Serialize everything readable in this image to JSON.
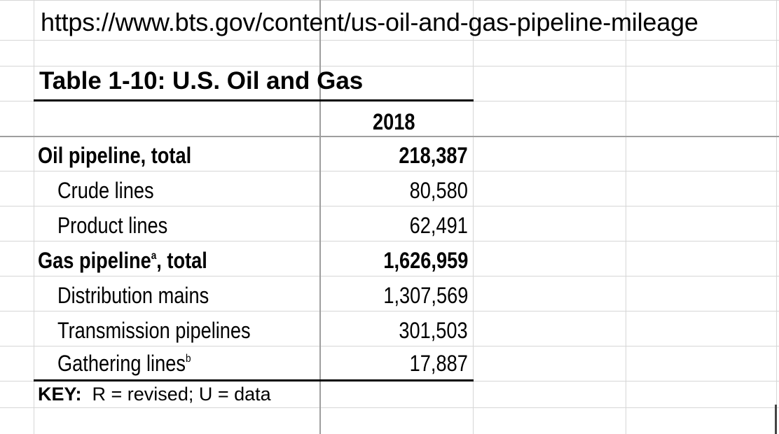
{
  "source_url": "https://www.bts.gov/content/us-oil-and-gas-pipeline-mileage",
  "table": {
    "title": "Table 1-10:  U.S. Oil and Gas",
    "year_header": "2018",
    "rows": [
      {
        "label": "Oil pipeline, total",
        "sup": "",
        "suffix": "",
        "value": "218,387"
      },
      {
        "label": "Crude lines",
        "sup": "",
        "suffix": "",
        "value": "80,580"
      },
      {
        "label": "Product lines",
        "sup": "",
        "suffix": "",
        "value": "62,491"
      },
      {
        "label": "Gas pipeline",
        "sup": "a",
        "suffix": ", total",
        "value": "1,626,959"
      },
      {
        "label": "Distribution mains",
        "sup": "",
        "suffix": "",
        "value": "1,307,569"
      },
      {
        "label": "Transmission pipelines",
        "sup": "",
        "suffix": "",
        "value": "301,503"
      },
      {
        "label": "Gathering lines",
        "sup": "b",
        "suffix": "",
        "value": "17,887"
      }
    ],
    "key_label": "KEY:",
    "key_text": "R = revised; U = data"
  }
}
